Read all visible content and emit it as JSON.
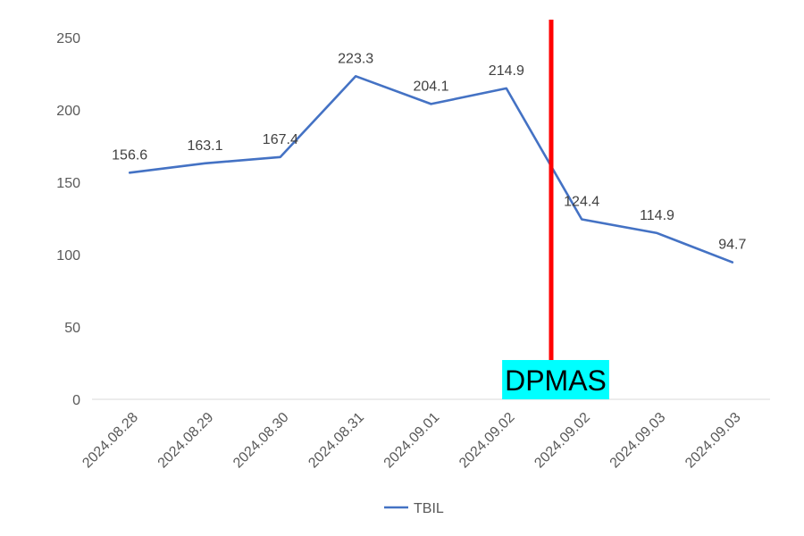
{
  "chart_data": {
    "type": "line",
    "categories": [
      "2024.08.28",
      "2024.08.29",
      "2024.08.30",
      "2024.08.31",
      "2024.09.01",
      "2024.09.02",
      "2024.09.02",
      "2024.09.03",
      "2024.09.03"
    ],
    "series": [
      {
        "name": "TBIL",
        "values": [
          156.6,
          163.1,
          167.4,
          223.3,
          204.1,
          214.9,
          124.4,
          114.9,
          94.7
        ],
        "labels": [
          "156.6",
          "163.1",
          "167.4",
          "223.3",
          "204.1",
          "214.9",
          "124.4",
          "114.9",
          "94.7"
        ],
        "color": "#4472C4"
      }
    ],
    "yticks": [
      "0",
      "50",
      "100",
      "150",
      "200",
      "250"
    ],
    "ylim": [
      0,
      250
    ],
    "grid": false,
    "legend": "bottom-center",
    "annotation": {
      "text": "DPMAS",
      "position": "between 2024.09.02 and 2024.09.02",
      "line_color": "#FF0000",
      "label_bg": "#00FFFF"
    }
  }
}
